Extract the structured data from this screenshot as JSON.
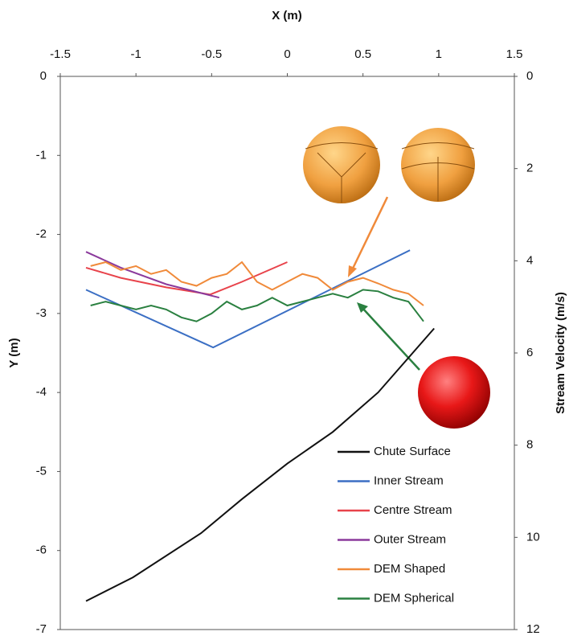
{
  "chart_data": {
    "type": "line",
    "xlabel": "X (m)",
    "ylabel": "Y (m)",
    "y2label": "Stream Velocity (m/s)",
    "xlim": [
      -1.5,
      1.5
    ],
    "xticks": [
      -1.5,
      -1,
      -0.5,
      0,
      0.5,
      1,
      1.5
    ],
    "ylim": [
      -7,
      0
    ],
    "yticks": [
      0,
      -1,
      -2,
      -3,
      -4,
      -5,
      -6,
      -7
    ],
    "y2lim": [
      0,
      12
    ],
    "y2ticks": [
      0,
      2,
      4,
      6,
      8,
      10,
      12
    ],
    "y2_reversed": true,
    "legend": "lower right",
    "series": [
      {
        "name": "Chute Surface",
        "color": "#111111",
        "x": [
          -1.33,
          -1.02,
          -0.57,
          -0.3,
          0,
          0.3,
          0.6,
          0.97
        ],
        "values": [
          -6.64,
          -6.34,
          -5.78,
          -5.35,
          -4.9,
          -4.5,
          -4.0,
          -3.19
        ]
      },
      {
        "name": "Inner Stream",
        "color": "#3b6fc4",
        "x": [
          -1.33,
          -0.49,
          0.81
        ],
        "values": [
          -2.7,
          -3.43,
          -2.2
        ]
      },
      {
        "name": "Centre Stream",
        "color": "#e8434b",
        "x": [
          -1.33,
          -1.1,
          -0.8,
          -0.51,
          -0.3,
          0.0
        ],
        "values": [
          -2.42,
          -2.55,
          -2.67,
          -2.76,
          -2.6,
          -2.35
        ]
      },
      {
        "name": "Outer Stream",
        "color": "#8b3a9c",
        "x": [
          -1.33,
          -1.1,
          -0.8,
          -0.45
        ],
        "values": [
          -2.22,
          -2.42,
          -2.63,
          -2.8
        ]
      },
      {
        "name": "DEM Shaped",
        "color": "#f08a3a",
        "x": [
          -1.3,
          -1.2,
          -1.1,
          -1.0,
          -0.9,
          -0.8,
          -0.7,
          -0.6,
          -0.5,
          -0.4,
          -0.3,
          -0.2,
          -0.1,
          0.0,
          0.1,
          0.2,
          0.3,
          0.4,
          0.5,
          0.6,
          0.7,
          0.8,
          0.9
        ],
        "values": [
          -2.4,
          -2.35,
          -2.45,
          -2.4,
          -2.5,
          -2.45,
          -2.6,
          -2.65,
          -2.55,
          -2.5,
          -2.35,
          -2.6,
          -2.7,
          -2.6,
          -2.5,
          -2.55,
          -2.7,
          -2.6,
          -2.55,
          -2.62,
          -2.7,
          -2.75,
          -2.9
        ]
      },
      {
        "name": "DEM Spherical",
        "color": "#2a8040",
        "x": [
          -1.3,
          -1.2,
          -1.1,
          -1.0,
          -0.9,
          -0.8,
          -0.7,
          -0.6,
          -0.5,
          -0.4,
          -0.3,
          -0.2,
          -0.1,
          0.0,
          0.1,
          0.2,
          0.3,
          0.4,
          0.5,
          0.6,
          0.7,
          0.8,
          0.9
        ],
        "values": [
          -2.9,
          -2.85,
          -2.9,
          -2.95,
          -2.9,
          -2.95,
          -3.05,
          -3.1,
          -3.0,
          -2.85,
          -2.95,
          -2.9,
          -2.8,
          -2.9,
          -2.85,
          -2.8,
          -2.75,
          -2.8,
          -2.7,
          -2.72,
          -2.8,
          -2.85,
          -3.1
        ]
      }
    ]
  }
}
